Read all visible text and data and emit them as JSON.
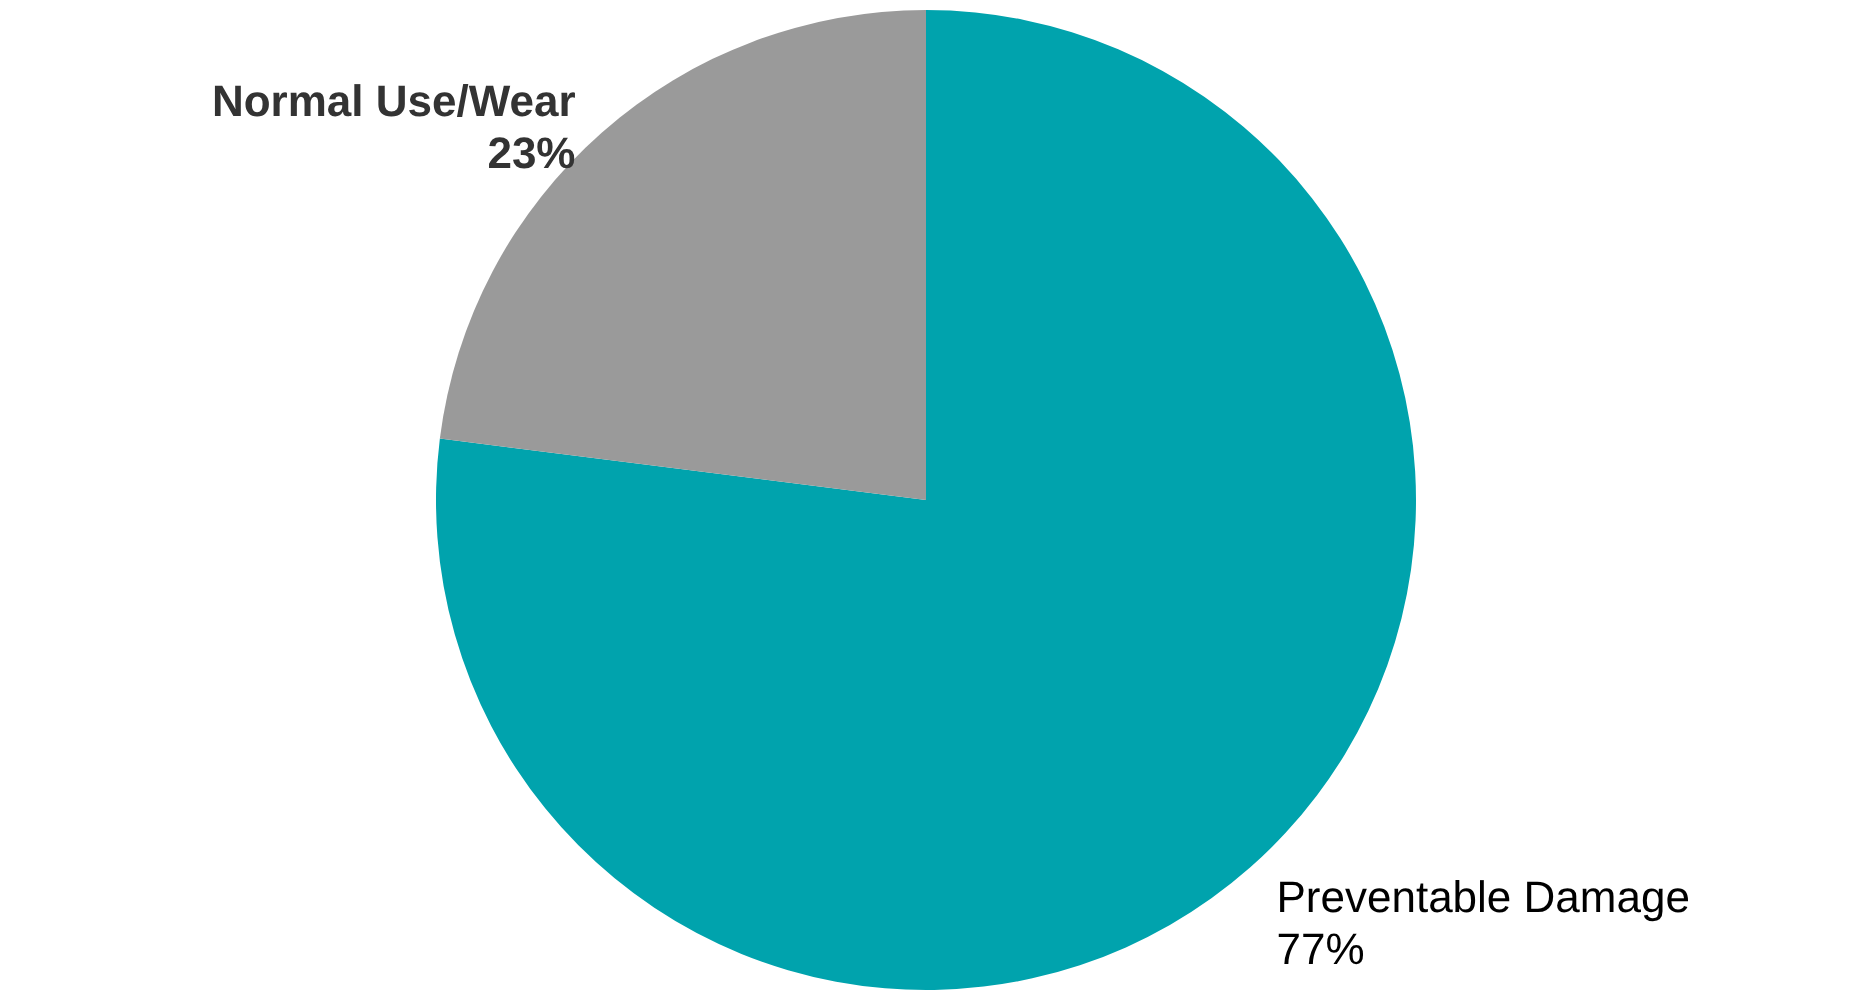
{
  "chart_data": {
    "type": "pie",
    "categories": [
      "Preventable Damage",
      "Normal Use/Wear"
    ],
    "values": [
      77,
      23
    ],
    "value_labels": [
      "77%",
      "23%"
    ],
    "colors": [
      "#00a3ad",
      "#9a9a9a"
    ]
  }
}
